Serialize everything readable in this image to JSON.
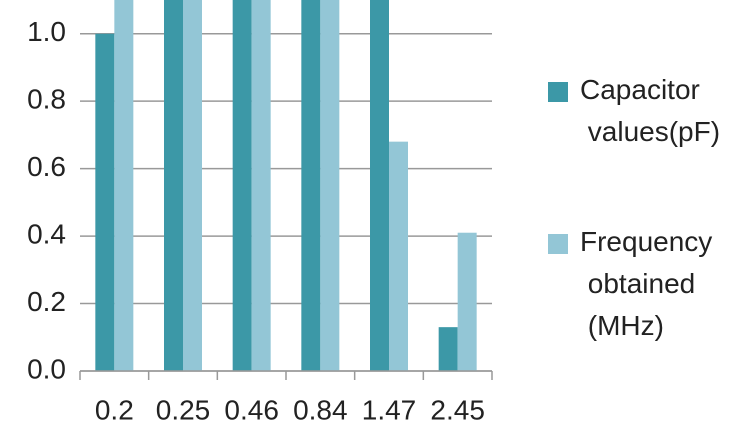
{
  "chart_data": {
    "type": "bar",
    "categories": [
      "0.2",
      "0.25",
      "0.46",
      "0.84",
      "1.47",
      "2.45"
    ],
    "series": [
      {
        "name": "Capacitor values(pF)",
        "color": "#3c98a7",
        "values": [
          1.0,
          1.1,
          1.1,
          1.1,
          1.1,
          0.13
        ]
      },
      {
        "name": "Frequency obtained (MHz)",
        "color": "#93c6d6",
        "values": [
          1.1,
          1.1,
          1.1,
          1.1,
          0.68,
          0.41
        ]
      }
    ],
    "ylim": [
      0,
      1.1
    ],
    "yticks": [
      {
        "value": 0,
        "label": "0.0"
      },
      0.2,
      0.4,
      0.6,
      0.8,
      {
        "value": 1,
        "label": "1.0"
      }
    ],
    "grid": true,
    "legend": "right"
  }
}
